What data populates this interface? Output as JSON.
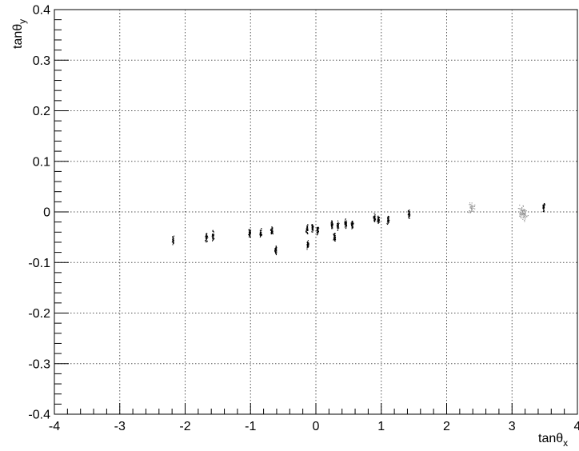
{
  "chart_data": {
    "type": "scatter",
    "title": "",
    "xlabel": "tanθ",
    "xlabel_subscript": "x",
    "ylabel": "tanθ",
    "ylabel_subscript": "y",
    "xlim": [
      -4,
      4
    ],
    "ylim": [
      -0.4,
      0.4
    ],
    "x_ticks": [
      -4,
      -3,
      -2,
      -1,
      0,
      1,
      2,
      3,
      4
    ],
    "y_ticks": [
      -0.4,
      -0.3,
      -0.2,
      -0.1,
      0,
      0.1,
      0.2,
      0.3,
      0.4
    ],
    "x_tick_labels": [
      "-4",
      "-3",
      "-2",
      "-1",
      "0",
      "1",
      "2",
      "3",
      "4"
    ],
    "y_tick_labels": [
      "-0.4",
      "-0.3",
      "-0.2",
      "-0.1",
      "0",
      "0.1",
      "0.2",
      "0.3",
      "0.4"
    ],
    "grid": true,
    "grid_style": "dotted",
    "colors": {
      "dense": "#000000",
      "sparse": "#8a8a8a",
      "grid": "#555555"
    },
    "clusters": [
      {
        "x": -2.19,
        "y": -0.055,
        "density": "dense"
      },
      {
        "x": -1.68,
        "y": -0.05,
        "density": "dense"
      },
      {
        "x": -1.58,
        "y": -0.047,
        "density": "dense"
      },
      {
        "x": -1.02,
        "y": -0.042,
        "density": "dense"
      },
      {
        "x": -0.85,
        "y": -0.042,
        "density": "dense"
      },
      {
        "x": -0.68,
        "y": -0.037,
        "density": "dense"
      },
      {
        "x": -0.62,
        "y": -0.075,
        "density": "dense"
      },
      {
        "x": -0.14,
        "y": -0.034,
        "density": "dense"
      },
      {
        "x": -0.13,
        "y": -0.063,
        "density": "dense"
      },
      {
        "x": -0.06,
        "y": -0.03,
        "density": "dense"
      },
      {
        "x": 0.02,
        "y": -0.036,
        "density": "dense"
      },
      {
        "x": 0.24,
        "y": -0.024,
        "density": "dense"
      },
      {
        "x": 0.28,
        "y": -0.048,
        "density": "dense"
      },
      {
        "x": 0.33,
        "y": -0.026,
        "density": "dense"
      },
      {
        "x": 0.45,
        "y": -0.023,
        "density": "dense"
      },
      {
        "x": 0.55,
        "y": -0.025,
        "density": "dense"
      },
      {
        "x": 0.89,
        "y": -0.012,
        "density": "dense"
      },
      {
        "x": 0.95,
        "y": -0.015,
        "density": "dense"
      },
      {
        "x": 1.1,
        "y": -0.015,
        "density": "dense"
      },
      {
        "x": 1.42,
        "y": -0.003,
        "density": "dense"
      },
      {
        "x": 2.38,
        "y": 0.008,
        "density": "sparse"
      },
      {
        "x": 3.14,
        "y": 0.002,
        "density": "sparse"
      },
      {
        "x": 3.18,
        "y": -0.005,
        "density": "sparse"
      },
      {
        "x": 3.48,
        "y": 0.01,
        "density": "dense"
      }
    ]
  }
}
